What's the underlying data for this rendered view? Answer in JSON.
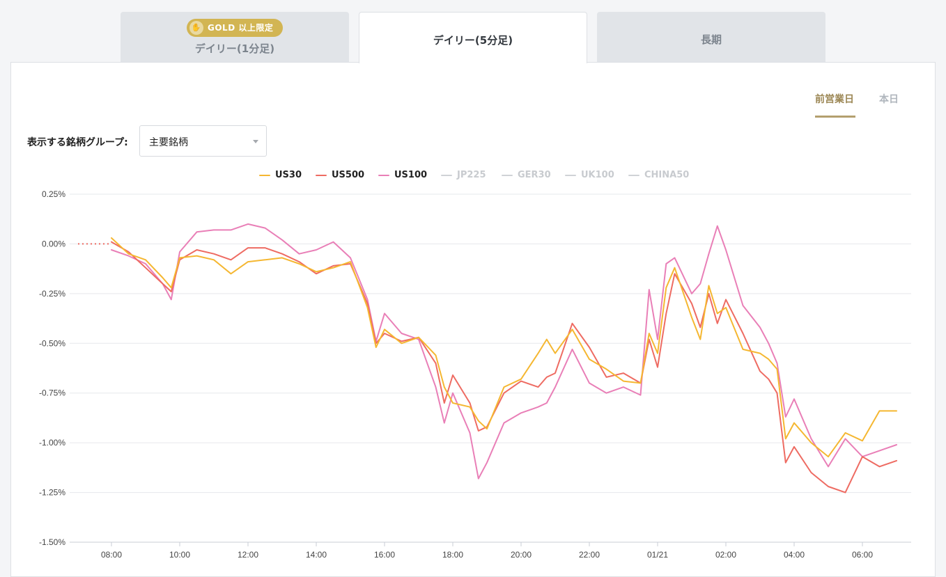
{
  "tabs": [
    {
      "label": "デイリー(1分足)",
      "badge": "GOLD 以上限定",
      "active": false
    },
    {
      "label": "デイリー(5分足)",
      "active": true
    },
    {
      "label": "長期",
      "active": false
    }
  ],
  "periods": [
    {
      "label": "前営業日",
      "active": true
    },
    {
      "label": "本日",
      "active": false
    }
  ],
  "group_selector": {
    "label": "表示する銘柄グループ:",
    "value": "主要銘柄"
  },
  "legend": [
    {
      "name": "US30",
      "color": "#f5b731",
      "active": true
    },
    {
      "name": "US500",
      "color": "#ee6b62",
      "active": true
    },
    {
      "name": "US100",
      "color": "#e97fb7",
      "active": true
    },
    {
      "name": "JP225",
      "color": "#cfd2d6",
      "active": false
    },
    {
      "name": "GER30",
      "color": "#cfd2d6",
      "active": false
    },
    {
      "name": "UK100",
      "color": "#cfd2d6",
      "active": false
    },
    {
      "name": "CHINA50",
      "color": "#cfd2d6",
      "active": false
    }
  ],
  "chart_data": {
    "type": "line",
    "ylim": [
      -1.5,
      0.25
    ],
    "y_ticks": [
      "0.25%",
      "0.00%",
      "-0.25%",
      "-0.50%",
      "-0.75%",
      "-1.00%",
      "-1.25%",
      "-1.50%"
    ],
    "x_ticks": [
      "08:00",
      "10:00",
      "12:00",
      "14:00",
      "16:00",
      "18:00",
      "20:00",
      "22:00",
      "01/21",
      "02:00",
      "04:00",
      "06:00"
    ],
    "grid": true,
    "legend_position": "top-center",
    "series": [
      {
        "name": "US30",
        "color": "#f5b731",
        "points": [
          [
            "08:00",
            0.03
          ],
          [
            "08:30",
            -0.05
          ],
          [
            "09:00",
            -0.08
          ],
          [
            "09:30",
            -0.17
          ],
          [
            "09:45",
            -0.22
          ],
          [
            "10:00",
            -0.07
          ],
          [
            "10:30",
            -0.06
          ],
          [
            "11:00",
            -0.08
          ],
          [
            "11:30",
            -0.15
          ],
          [
            "12:00",
            -0.09
          ],
          [
            "12:30",
            -0.08
          ],
          [
            "13:00",
            -0.07
          ],
          [
            "13:30",
            -0.1
          ],
          [
            "14:00",
            -0.14
          ],
          [
            "14:30",
            -0.12
          ],
          [
            "15:00",
            -0.09
          ],
          [
            "15:30",
            -0.32
          ],
          [
            "15:45",
            -0.52
          ],
          [
            "16:00",
            -0.43
          ],
          [
            "16:30",
            -0.5
          ],
          [
            "17:00",
            -0.47
          ],
          [
            "17:30",
            -0.56
          ],
          [
            "17:45",
            -0.72
          ],
          [
            "18:00",
            -0.8
          ],
          [
            "18:30",
            -0.82
          ],
          [
            "18:45",
            -0.89
          ],
          [
            "19:00",
            -0.93
          ],
          [
            "19:30",
            -0.72
          ],
          [
            "20:00",
            -0.68
          ],
          [
            "20:30",
            -0.55
          ],
          [
            "20:45",
            -0.48
          ],
          [
            "21:00",
            -0.55
          ],
          [
            "21:30",
            -0.43
          ],
          [
            "22:00",
            -0.58
          ],
          [
            "22:30",
            -0.63
          ],
          [
            "23:00",
            -0.69
          ],
          [
            "23:30",
            -0.7
          ],
          [
            "23:45",
            -0.45
          ],
          [
            "00:00",
            -0.55
          ],
          [
            "00:15",
            -0.22
          ],
          [
            "00:30",
            -0.12
          ],
          [
            "01:00",
            -0.37
          ],
          [
            "01:15",
            -0.48
          ],
          [
            "01:30",
            -0.21
          ],
          [
            "01:45",
            -0.35
          ],
          [
            "02:00",
            -0.32
          ],
          [
            "02:30",
            -0.53
          ],
          [
            "03:00",
            -0.55
          ],
          [
            "03:15",
            -0.58
          ],
          [
            "03:30",
            -0.63
          ],
          [
            "03:45",
            -0.98
          ],
          [
            "04:00",
            -0.9
          ],
          [
            "04:30",
            -1.0
          ],
          [
            "05:00",
            -1.07
          ],
          [
            "05:30",
            -0.95
          ],
          [
            "06:00",
            -0.99
          ],
          [
            "06:30",
            -0.84
          ],
          [
            "07:00",
            -0.84
          ]
        ]
      },
      {
        "name": "US500",
        "color": "#ee6b62",
        "points": [
          [
            "08:00",
            0.01
          ],
          [
            "08:30",
            -0.04
          ],
          [
            "09:00",
            -0.12
          ],
          [
            "09:30",
            -0.2
          ],
          [
            "09:45",
            -0.24
          ],
          [
            "10:00",
            -0.08
          ],
          [
            "10:30",
            -0.03
          ],
          [
            "11:00",
            -0.05
          ],
          [
            "11:30",
            -0.08
          ],
          [
            "12:00",
            -0.02
          ],
          [
            "12:30",
            -0.02
          ],
          [
            "13:00",
            -0.05
          ],
          [
            "13:30",
            -0.09
          ],
          [
            "14:00",
            -0.15
          ],
          [
            "14:30",
            -0.11
          ],
          [
            "15:00",
            -0.1
          ],
          [
            "15:30",
            -0.3
          ],
          [
            "15:45",
            -0.5
          ],
          [
            "16:00",
            -0.45
          ],
          [
            "16:30",
            -0.49
          ],
          [
            "17:00",
            -0.47
          ],
          [
            "17:30",
            -0.6
          ],
          [
            "17:45",
            -0.8
          ],
          [
            "18:00",
            -0.66
          ],
          [
            "18:30",
            -0.8
          ],
          [
            "18:45",
            -0.94
          ],
          [
            "19:00",
            -0.92
          ],
          [
            "19:30",
            -0.75
          ],
          [
            "20:00",
            -0.69
          ],
          [
            "20:30",
            -0.72
          ],
          [
            "20:45",
            -0.67
          ],
          [
            "21:00",
            -0.65
          ],
          [
            "21:30",
            -0.4
          ],
          [
            "22:00",
            -0.52
          ],
          [
            "22:30",
            -0.67
          ],
          [
            "23:00",
            -0.65
          ],
          [
            "23:30",
            -0.7
          ],
          [
            "23:45",
            -0.48
          ],
          [
            "00:00",
            -0.62
          ],
          [
            "00:15",
            -0.35
          ],
          [
            "00:30",
            -0.15
          ],
          [
            "01:00",
            -0.3
          ],
          [
            "01:15",
            -0.42
          ],
          [
            "01:30",
            -0.25
          ],
          [
            "01:45",
            -0.4
          ],
          [
            "02:00",
            -0.28
          ],
          [
            "02:30",
            -0.45
          ],
          [
            "03:00",
            -0.64
          ],
          [
            "03:15",
            -0.68
          ],
          [
            "03:30",
            -0.75
          ],
          [
            "03:45",
            -1.1
          ],
          [
            "04:00",
            -1.02
          ],
          [
            "04:30",
            -1.15
          ],
          [
            "05:00",
            -1.22
          ],
          [
            "05:30",
            -1.25
          ],
          [
            "06:00",
            -1.07
          ],
          [
            "06:30",
            -1.12
          ],
          [
            "07:00",
            -1.09
          ]
        ]
      },
      {
        "name": "US100",
        "color": "#e97fb7",
        "points": [
          [
            "08:00",
            -0.03
          ],
          [
            "08:30",
            -0.06
          ],
          [
            "09:00",
            -0.1
          ],
          [
            "09:30",
            -0.2
          ],
          [
            "09:45",
            -0.28
          ],
          [
            "10:00",
            -0.04
          ],
          [
            "10:30",
            0.06
          ],
          [
            "11:00",
            0.07
          ],
          [
            "11:30",
            0.07
          ],
          [
            "12:00",
            0.1
          ],
          [
            "12:30",
            0.08
          ],
          [
            "13:00",
            0.02
          ],
          [
            "13:30",
            -0.05
          ],
          [
            "14:00",
            -0.03
          ],
          [
            "14:30",
            0.01
          ],
          [
            "15:00",
            -0.07
          ],
          [
            "15:30",
            -0.28
          ],
          [
            "15:45",
            -0.49
          ],
          [
            "16:00",
            -0.35
          ],
          [
            "16:30",
            -0.45
          ],
          [
            "17:00",
            -0.48
          ],
          [
            "17:30",
            -0.72
          ],
          [
            "17:45",
            -0.9
          ],
          [
            "18:00",
            -0.75
          ],
          [
            "18:30",
            -0.95
          ],
          [
            "18:45",
            -1.18
          ],
          [
            "19:00",
            -1.1
          ],
          [
            "19:30",
            -0.9
          ],
          [
            "20:00",
            -0.85
          ],
          [
            "20:30",
            -0.82
          ],
          [
            "20:45",
            -0.8
          ],
          [
            "21:00",
            -0.72
          ],
          [
            "21:30",
            -0.53
          ],
          [
            "22:00",
            -0.7
          ],
          [
            "22:30",
            -0.75
          ],
          [
            "23:00",
            -0.72
          ],
          [
            "23:30",
            -0.76
          ],
          [
            "23:45",
            -0.23
          ],
          [
            "00:00",
            -0.48
          ],
          [
            "00:15",
            -0.1
          ],
          [
            "00:30",
            -0.07
          ],
          [
            "01:00",
            -0.25
          ],
          [
            "01:15",
            -0.2
          ],
          [
            "01:30",
            -0.05
          ],
          [
            "01:45",
            0.09
          ],
          [
            "02:00",
            -0.03
          ],
          [
            "02:30",
            -0.31
          ],
          [
            "03:00",
            -0.42
          ],
          [
            "03:15",
            -0.5
          ],
          [
            "03:30",
            -0.6
          ],
          [
            "03:45",
            -0.87
          ],
          [
            "04:00",
            -0.78
          ],
          [
            "04:30",
            -0.98
          ],
          [
            "05:00",
            -1.12
          ],
          [
            "05:30",
            -0.98
          ],
          [
            "06:00",
            -1.07
          ],
          [
            "06:30",
            -1.04
          ],
          [
            "07:00",
            -1.01
          ]
        ]
      }
    ]
  }
}
